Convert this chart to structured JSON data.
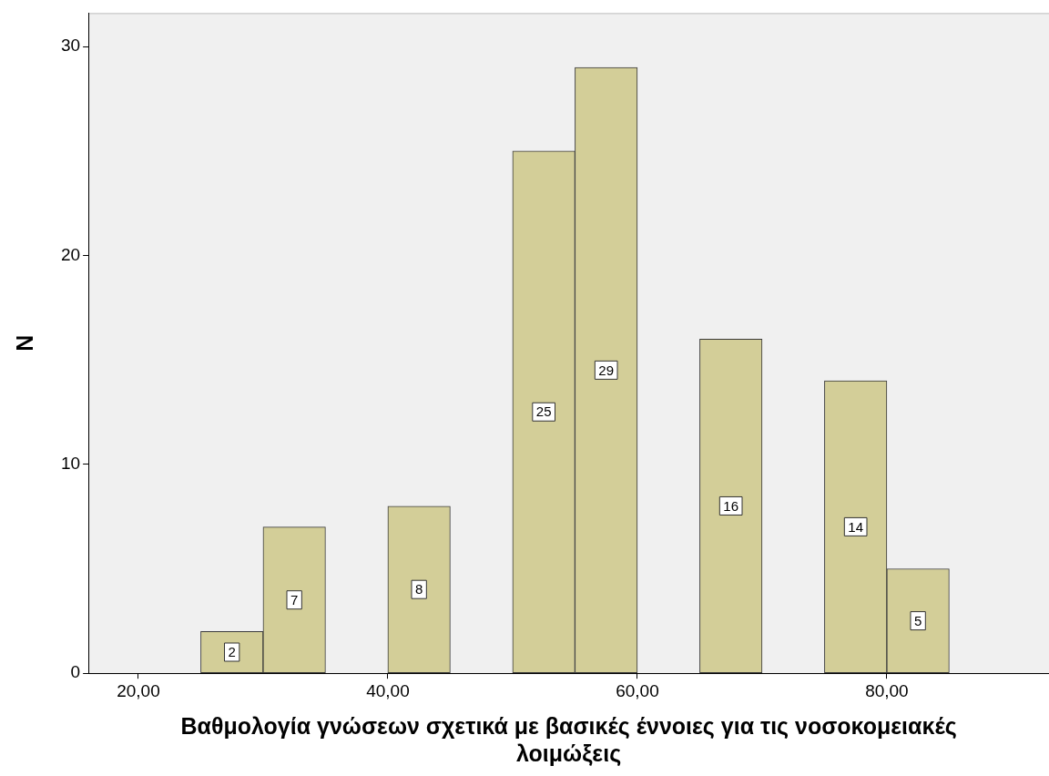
{
  "chart_data": {
    "type": "histogram",
    "xlabel": "Βαθμολογία γνώσεων σχετικά με βασικές έννοιες για τις νοσοκομειακές λοιμώξεις",
    "ylabel": "N",
    "bins": [
      25,
      30,
      35,
      40,
      45,
      50,
      55,
      60,
      65,
      70,
      75,
      80,
      85
    ],
    "values": [
      2,
      7,
      0,
      8,
      0,
      25,
      29,
      0,
      16,
      0,
      14,
      5
    ],
    "value_labels": [
      "2",
      "7",
      null,
      "8",
      null,
      "25",
      "29",
      null,
      "16",
      null,
      "14",
      "5"
    ],
    "color": "#d3ce98",
    "xlim": [
      16,
      93
    ],
    "xticks": [
      {
        "value": 20,
        "label": "20,00"
      },
      {
        "value": 40,
        "label": "40,00"
      },
      {
        "value": 60,
        "label": "60,00"
      },
      {
        "value": 80,
        "label": "80,00"
      }
    ],
    "ylim": [
      0,
      31.6
    ],
    "yticks": [
      0,
      10,
      20,
      30
    ],
    "grid": false,
    "legend": false
  }
}
